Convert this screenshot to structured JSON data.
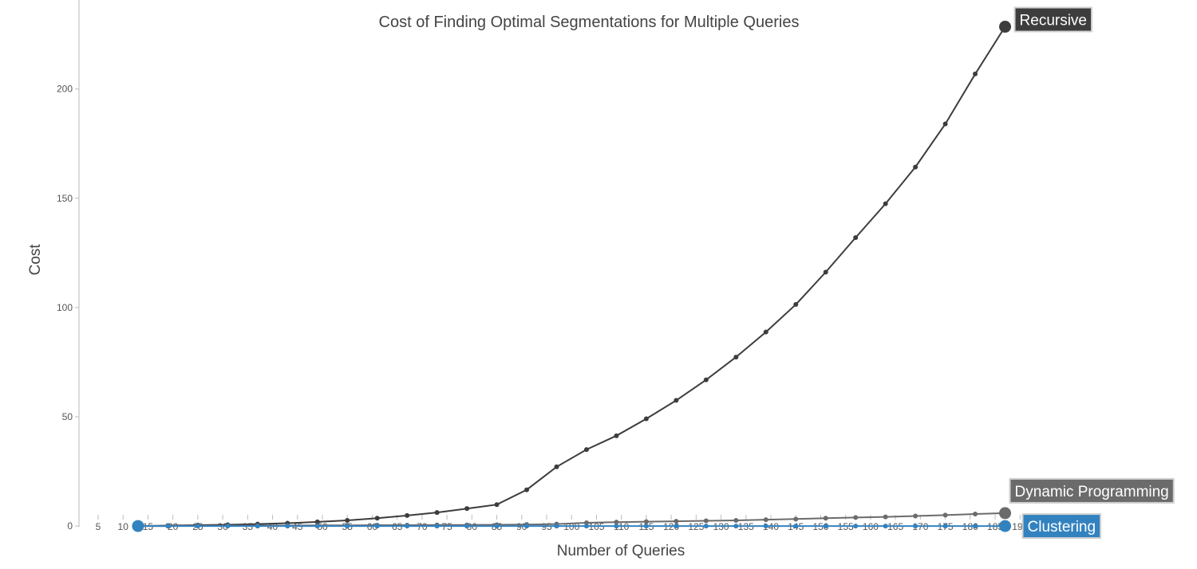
{
  "chart_data": {
    "type": "line",
    "title": "Cost of Finding Optimal Segmentations for Multiple Queries",
    "xlabel": "Number of Queries",
    "ylabel": "Cost",
    "xlim": [
      1,
      193
    ],
    "ylim": [
      -12,
      240
    ],
    "xticks": [
      5,
      10,
      15,
      20,
      25,
      30,
      35,
      40,
      45,
      50,
      55,
      60,
      65,
      70,
      75,
      80,
      85,
      90,
      95,
      100,
      105,
      110,
      115,
      120,
      125,
      130,
      135,
      140,
      145,
      150,
      155,
      160,
      165,
      170,
      175,
      180,
      185,
      190
    ],
    "yticks": [
      0,
      50,
      100,
      150,
      200
    ],
    "grid": false,
    "legend": "labels at line ends",
    "x": [
      13,
      19,
      25,
      31,
      37,
      43,
      49,
      55,
      61,
      67,
      73,
      79,
      85,
      91,
      97,
      103,
      109,
      115,
      121,
      127,
      133,
      139,
      145,
      151,
      157,
      163,
      169,
      175,
      181,
      187
    ],
    "series": [
      {
        "name": "Recursive",
        "color": "#3d3d3d",
        "values": [
          0,
          0.2,
          0.4,
          0.6,
          0.9,
          1.3,
          1.9,
          2.6,
          3.6,
          4.8,
          6.2,
          8.0,
          9.8,
          16.6,
          27.1,
          35.0,
          41.3,
          49.1,
          57.5,
          66.9,
          77.3,
          88.8,
          101.4,
          116.2,
          132.0,
          147.5,
          164.3,
          184.0,
          206.9,
          228.5
        ]
      },
      {
        "name": "Dynamic Programming",
        "color": "#6b6b6b",
        "values": [
          0,
          0,
          0.1,
          0.1,
          0.2,
          0.2,
          0.3,
          0.3,
          0.4,
          0.4,
          0.5,
          0.5,
          0.6,
          0.7,
          0.9,
          1.5,
          1.8,
          2.0,
          2.2,
          2.4,
          2.6,
          2.9,
          3.2,
          3.6,
          3.9,
          4.2,
          4.6,
          5.0,
          5.5,
          5.9
        ]
      },
      {
        "name": "Clustering",
        "color": "#3382c0",
        "values": [
          0,
          0,
          0,
          0,
          0,
          0,
          0,
          0,
          0,
          0,
          0,
          0,
          0,
          0,
          0,
          0,
          0,
          0,
          0,
          0,
          0,
          0,
          0,
          0,
          0,
          0,
          0,
          0,
          0,
          0
        ]
      }
    ]
  }
}
